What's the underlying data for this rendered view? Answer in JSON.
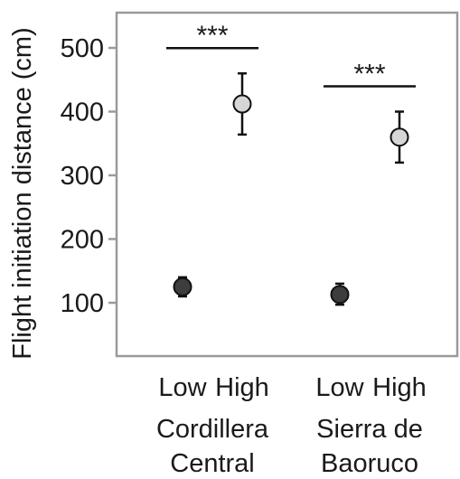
{
  "chart_data": {
    "type": "scatter",
    "ylabel": "Flight initiation distance (cm)",
    "ylim": [
      0,
      550
    ],
    "yticks": [
      100,
      200,
      300,
      400,
      500
    ],
    "groups": [
      {
        "name": "Cordillera Central",
        "name_lines": [
          "Cordillera",
          "Central"
        ],
        "significance": "***",
        "points": [
          {
            "category": "Low",
            "mean": 125,
            "lower": 110,
            "upper": 140,
            "color": "#3d3d3d"
          },
          {
            "category": "High",
            "mean": 412,
            "lower": 364,
            "upper": 460,
            "color": "#d6d6d6"
          }
        ]
      },
      {
        "name": "Sierra de Baoruco",
        "name_lines": [
          "Sierra de",
          "Baoruco"
        ],
        "significance": "***",
        "points": [
          {
            "category": "Low",
            "mean": 113,
            "lower": 97,
            "upper": 130,
            "color": "#3d3d3d"
          },
          {
            "category": "High",
            "mean": 360,
            "lower": 320,
            "upper": 400,
            "color": "#d6d6d6"
          }
        ]
      }
    ],
    "grid": false,
    "frame_color": "#9a9a9a"
  }
}
